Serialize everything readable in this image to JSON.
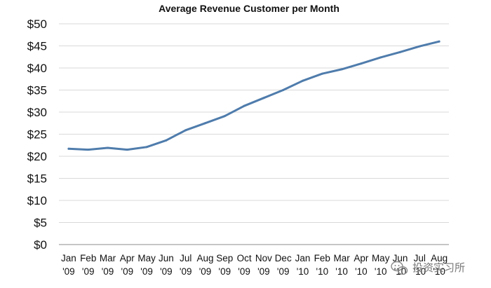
{
  "chart_data": {
    "type": "line",
    "title": "Average Revenue Customer per Month",
    "xlabel": "",
    "ylabel": "",
    "ylim": [
      0,
      50
    ],
    "ytick_step": 5,
    "y_prefix": "$",
    "grid": true,
    "legend": "none",
    "line_color": "#4f7cac",
    "categories": [
      [
        "Jan",
        "'09"
      ],
      [
        "Feb",
        "'09"
      ],
      [
        "Mar",
        "'09"
      ],
      [
        "Apr",
        "'09"
      ],
      [
        "May",
        "'09"
      ],
      [
        "Jun",
        "'09"
      ],
      [
        "Jul",
        "'09"
      ],
      [
        "Aug",
        "'09"
      ],
      [
        "Sep",
        "'09"
      ],
      [
        "Oct",
        "'09"
      ],
      [
        "Nov",
        "'09"
      ],
      [
        "Dec",
        "'09"
      ],
      [
        "Jan",
        "'10"
      ],
      [
        "Feb",
        "'10"
      ],
      [
        "Mar",
        "'10"
      ],
      [
        "Apr",
        "'10"
      ],
      [
        "May",
        "'10"
      ],
      [
        "Jun",
        "'10"
      ],
      [
        "Jul",
        "'10"
      ],
      [
        "Aug",
        "'10"
      ]
    ],
    "values": [
      21.7,
      21.5,
      21.9,
      21.5,
      22.1,
      23.6,
      25.9,
      27.5,
      29.1,
      31.4,
      33.2,
      35.0,
      37.1,
      38.7,
      39.7,
      41.0,
      42.4,
      43.6,
      44.9,
      46.0
    ]
  },
  "watermark": {
    "text": "投资实习所",
    "icon": "wechat-icon"
  }
}
